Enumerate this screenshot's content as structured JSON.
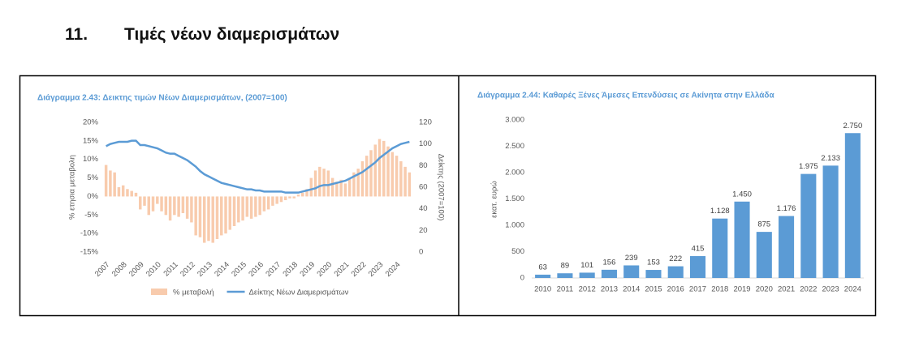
{
  "heading": {
    "number": "11.",
    "title": "Τιμές νέων διαμερισμάτων"
  },
  "chart_data": [
    {
      "type": "combo",
      "title": "Διάγραμμα 2.43: Δεικτης τιμών Νέων Διαμερισμάτων, (2007=100)",
      "y_label": "% ετησια μεταβολη",
      "y2_label": "Δείκτης (2007=100)",
      "categories": [
        "2007",
        null,
        null,
        null,
        "2008",
        null,
        null,
        null,
        "2009",
        null,
        null,
        null,
        "2010",
        null,
        null,
        null,
        "2011",
        null,
        null,
        null,
        "2012",
        null,
        null,
        null,
        "2013",
        null,
        null,
        null,
        "2014",
        null,
        null,
        null,
        "2015",
        null,
        null,
        null,
        "2016",
        null,
        null,
        null,
        "2017",
        null,
        null,
        null,
        "2018",
        null,
        null,
        null,
        "2019",
        null,
        null,
        null,
        "2020",
        null,
        null,
        null,
        "2021",
        null,
        null,
        null,
        "2022",
        null,
        null,
        null,
        "2023",
        null,
        null,
        null,
        "2024",
        null,
        null,
        null
      ],
      "series": [
        {
          "name": "% μεταβολή",
          "type": "bar",
          "color": "#f8cbad",
          "values": [
            8.5,
            7,
            6.5,
            2.5,
            3,
            2,
            1.5,
            1,
            -3.5,
            -2.5,
            -5,
            -4,
            -2,
            -4,
            -5,
            -6.5,
            -5,
            -5.5,
            -4.5,
            -6,
            -7,
            -10.5,
            -11,
            -12.5,
            -12,
            -12.5,
            -11.5,
            -10.5,
            -10,
            -9,
            -8,
            -7,
            -6.5,
            -5.5,
            -6,
            -5.5,
            -5,
            -4,
            -3.5,
            -2.5,
            -2,
            -1.5,
            -1,
            -0.5,
            -0.5,
            0.5,
            1,
            2,
            5,
            7,
            8,
            7.5,
            7,
            5,
            4,
            4.5,
            3.5,
            5,
            6.5,
            7.5,
            9.5,
            11,
            12.5,
            14,
            15.5,
            15,
            13.5,
            12,
            11,
            9.5,
            8,
            6.5
          ]
        },
        {
          "name": "Δείκτης Νέων Διαμερισμάτων",
          "type": "line",
          "axis": "y2",
          "color": "#5b9bd5",
          "values": [
            98,
            100,
            101,
            102,
            102,
            102,
            103,
            103,
            99,
            99,
            98,
            97,
            96,
            94,
            92,
            91,
            91,
            89,
            87,
            85,
            82,
            79,
            75,
            72,
            70,
            68,
            66,
            64,
            63,
            62,
            61,
            60,
            59,
            58,
            58,
            57,
            57,
            56,
            56,
            56,
            56,
            56,
            55,
            55,
            55,
            55,
            56,
            57,
            58,
            59,
            61,
            62,
            62,
            63,
            64,
            65,
            66,
            68,
            70,
            72,
            74,
            77,
            80,
            83,
            87,
            90,
            93,
            96,
            98,
            100,
            101,
            102
          ]
        }
      ],
      "ylim": [
        -15,
        20
      ],
      "yticks": [
        {
          "value": -15,
          "label": "-15%"
        },
        {
          "value": -10,
          "label": "-10%"
        },
        {
          "value": -5,
          "label": "-5%"
        },
        {
          "value": 0,
          "label": "0%"
        },
        {
          "value": 5,
          "label": "5%"
        },
        {
          "value": 10,
          "label": "10%"
        },
        {
          "value": 15,
          "label": "15%"
        },
        {
          "value": 20,
          "label": "20%"
        }
      ],
      "y2lim": [
        0,
        120
      ],
      "y2ticks": [
        0,
        20,
        40,
        60,
        80,
        100,
        120
      ],
      "legend": "bottom"
    },
    {
      "type": "bar",
      "title": "Διάγραμμα 2.44: Καθαρές Ξένες Άμεσες Επενδύσεις σε Ακίνητα στην Ελλάδα",
      "y_label": "εκατ. ευρώ",
      "categories": [
        "2010",
        "2011",
        "2012",
        "2013",
        "2014",
        "2015",
        "2016",
        "2017",
        "2018",
        "2019",
        "2020",
        "2021",
        "2022",
        "2023",
        "2024"
      ],
      "values": [
        63,
        89,
        101,
        156,
        239,
        153,
        222,
        415,
        1128,
        1450,
        875,
        1176,
        1975,
        2133,
        2750
      ],
      "value_labels": [
        "63",
        "89",
        "101",
        "156",
        "239",
        "153",
        "222",
        "415",
        "1.128",
        "1.450",
        "875",
        "1.176",
        "1.975",
        "2.133",
        "2.750"
      ],
      "color": "#5b9bd5",
      "ylim": [
        0,
        3000
      ],
      "yticks": [
        0,
        500,
        {
          "value": 1000,
          "label": "1.000"
        },
        {
          "value": 1500,
          "label": "1.500"
        },
        {
          "value": 2000,
          "label": "2.000"
        },
        {
          "value": 2500,
          "label": "2.500"
        },
        {
          "value": 3000,
          "label": "3.000"
        }
      ]
    }
  ]
}
